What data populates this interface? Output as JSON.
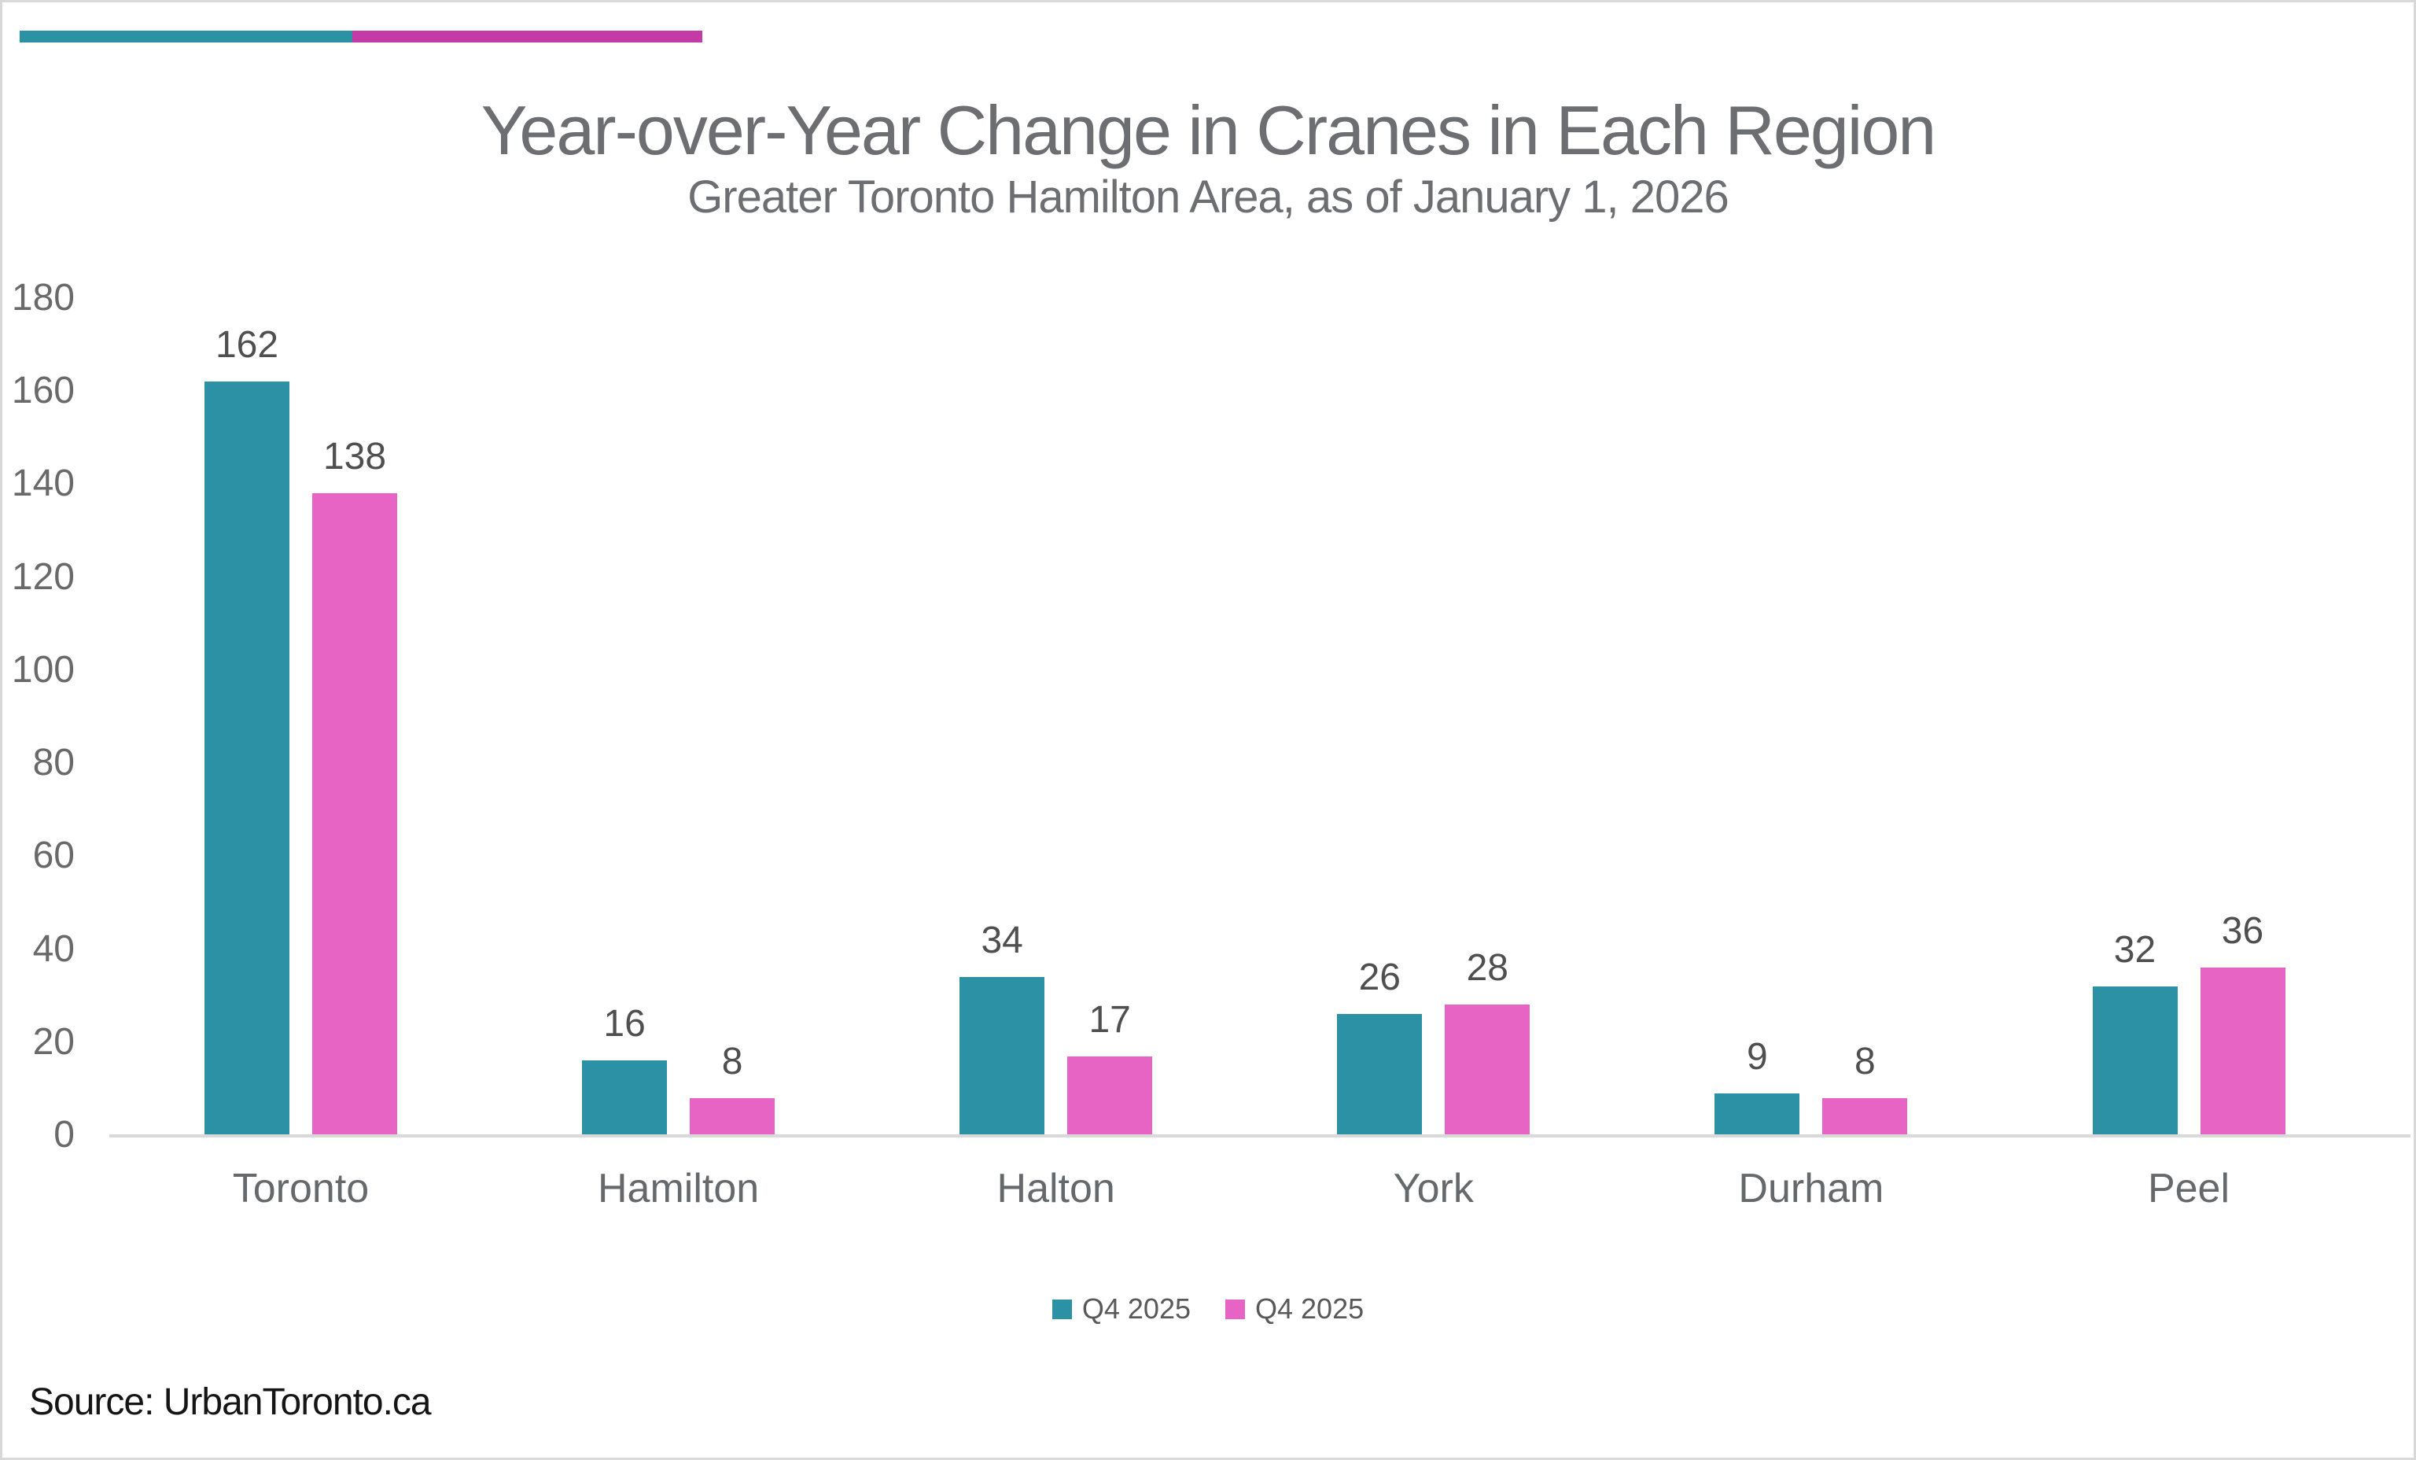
{
  "accent_bar": {
    "left_color": "#2D91A6",
    "right_color": "#C43AA6"
  },
  "chart_data": {
    "type": "bar",
    "title": "Year-over-Year Change in Cranes in Each Region",
    "subtitle": "Greater Toronto Hamilton Area, as of January 1, 2026",
    "categories": [
      "Toronto",
      "Hamilton",
      "Halton",
      "York",
      "Durham",
      "Peel"
    ],
    "series": [
      {
        "name": "Q4 2025",
        "color": "#2D91A6",
        "values": [
          162,
          16,
          34,
          26,
          9,
          32
        ]
      },
      {
        "name": "Q4 2025",
        "color": "#E763C4",
        "values": [
          138,
          8,
          17,
          28,
          8,
          36
        ]
      }
    ],
    "xlabel": "",
    "ylabel": "",
    "ylim": [
      0,
      180
    ],
    "yticks": [
      0,
      20,
      40,
      60,
      80,
      100,
      120,
      140,
      160,
      180
    ],
    "grid": false,
    "legend_position": "bottom",
    "bar_value_labels": true
  },
  "source_text": "Source: UrbanToronto.ca",
  "colors": {
    "background": "#ffffff",
    "border": "#d9d9d9",
    "axis_line": "#d9d9d9",
    "title_text": "#6d6e71",
    "axis_label_text": "#696969",
    "value_label_text": "#4f4f4f",
    "category_label_text": "#66696c",
    "legend_text": "#595959",
    "source_text_color": "#151515"
  }
}
